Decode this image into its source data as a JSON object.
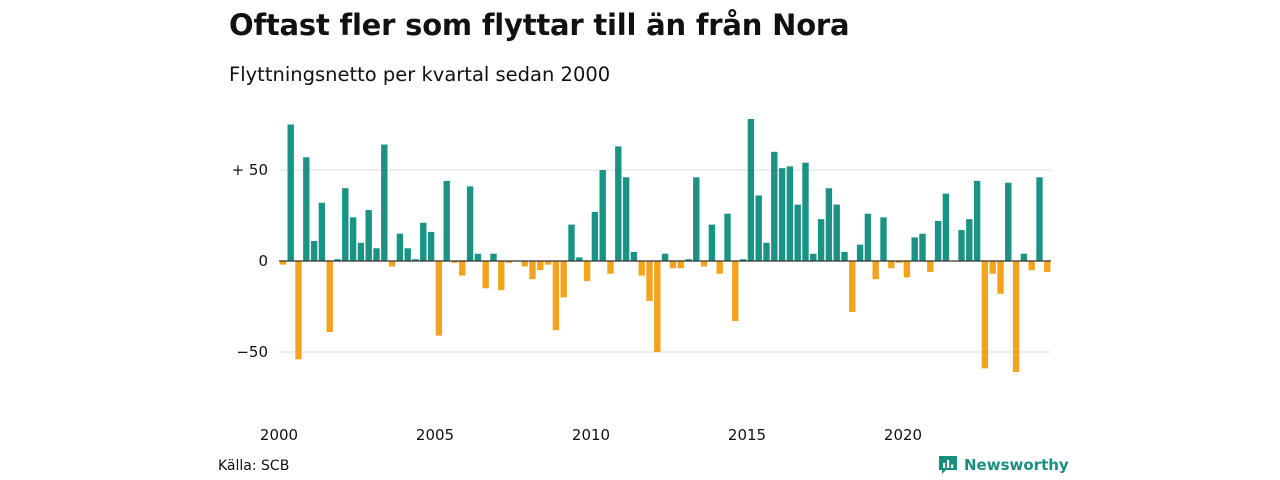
{
  "chart_data": {
    "type": "bar",
    "title": "Oftast fler som flyttar till än från Nora",
    "subtitle": "Flyttningsnetto per kvartal sedan 2000",
    "source": "Källa: SCB",
    "brand": "Newsworthy",
    "x_start": 2000,
    "y_ticks": [
      {
        "value": 50,
        "label": "+ 50"
      },
      {
        "value": 0,
        "label": "0"
      },
      {
        "value": -50,
        "label": "−50"
      }
    ],
    "x_ticks": [
      {
        "value": 2000,
        "label": "2000"
      },
      {
        "value": 2005,
        "label": "2005"
      },
      {
        "value": 2010,
        "label": "2010"
      },
      {
        "value": 2015,
        "label": "2015"
      },
      {
        "value": 2020,
        "label": "2020"
      }
    ],
    "ylim": [
      -75,
      80
    ],
    "grid": true,
    "colors": {
      "positive": "#1a9384",
      "negative": "#f4a31f",
      "grid": "#dddddd",
      "zero": "#333333"
    },
    "values": [
      -2,
      75,
      -54,
      57,
      11,
      32,
      -39,
      1,
      40,
      24,
      10,
      28,
      7,
      64,
      -3,
      15,
      7,
      1,
      21,
      16,
      -41,
      44,
      -1,
      -8,
      41,
      4,
      -15,
      4,
      -16,
      -1,
      0,
      -3,
      -10,
      -5,
      -2,
      -38,
      -20,
      20,
      2,
      -11,
      27,
      50,
      -7,
      63,
      46,
      5,
      -8,
      -22,
      -50,
      4,
      -4,
      -4,
      1,
      46,
      -3,
      20,
      -7,
      26,
      -33,
      1,
      78,
      36,
      10,
      60,
      51,
      52,
      31,
      54,
      4,
      23,
      40,
      31,
      5,
      -28,
      9,
      26,
      -10,
      24,
      -4,
      -1,
      -9,
      13,
      15,
      -6,
      22,
      37,
      0,
      17,
      23,
      44,
      -59,
      -7,
      -18,
      43,
      -61,
      4,
      -5,
      46,
      -6
    ]
  }
}
